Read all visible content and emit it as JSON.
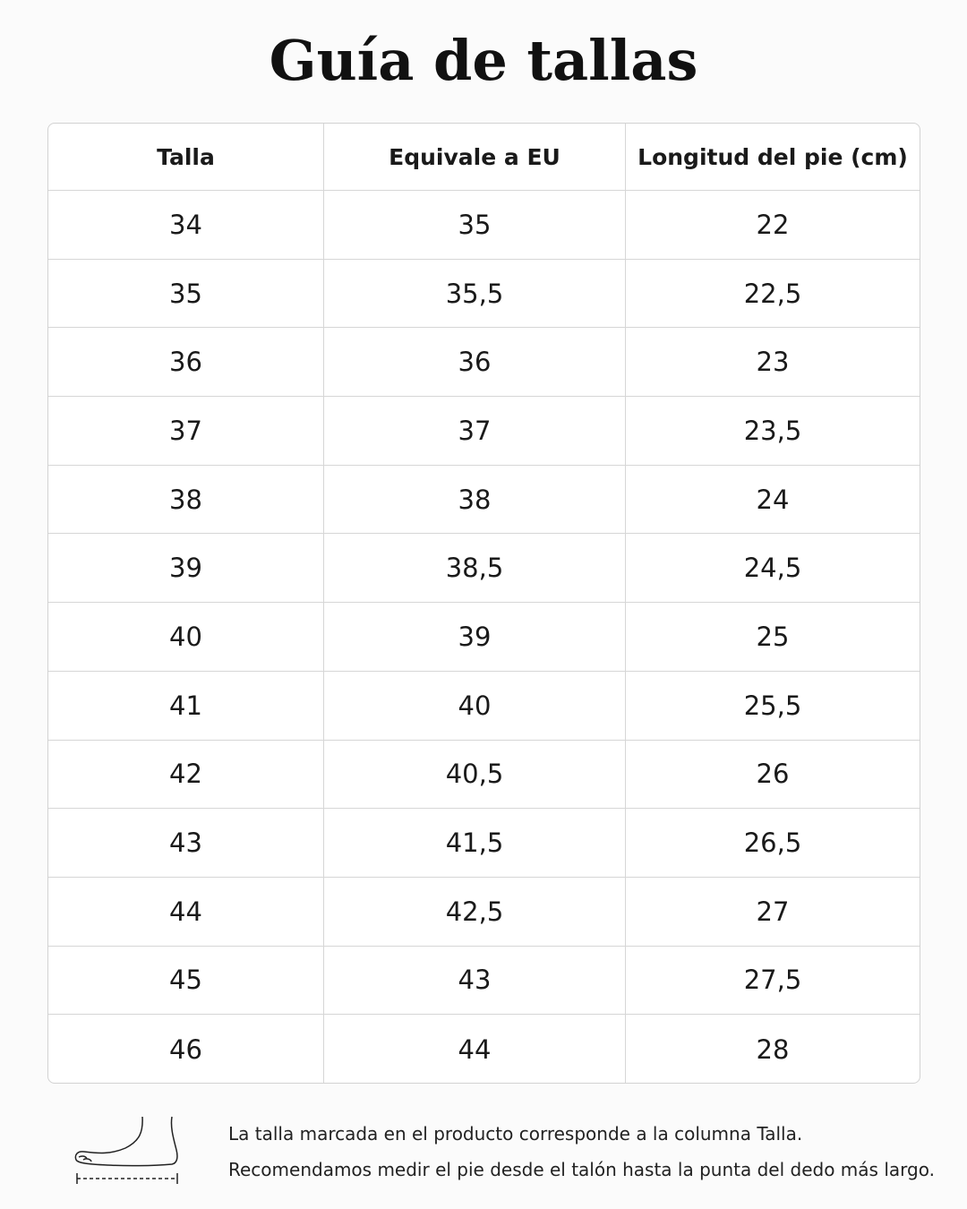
{
  "header": {
    "title": "Guía de tallas"
  },
  "table": {
    "columns": [
      "Talla",
      "Equivale a EU",
      "Longitud del pie (cm)"
    ],
    "rows": [
      [
        "34",
        "35",
        "22"
      ],
      [
        "35",
        "35,5",
        "22,5"
      ],
      [
        "36",
        "36",
        "23"
      ],
      [
        "37",
        "37",
        "23,5"
      ],
      [
        "38",
        "38",
        "24"
      ],
      [
        "39",
        "38,5",
        "24,5"
      ],
      [
        "40",
        "39",
        "25"
      ],
      [
        "41",
        "40",
        "25,5"
      ],
      [
        "42",
        "40,5",
        "26"
      ],
      [
        "43",
        "41,5",
        "26,5"
      ],
      [
        "44",
        "42,5",
        "27"
      ],
      [
        "45",
        "43",
        "27,5"
      ],
      [
        "46",
        "44",
        "28"
      ]
    ]
  },
  "footer": {
    "notes": [
      "La talla marcada en el producto corresponde a la columna Talla.",
      "Recomendamos medir el pie desde el talón hasta la punta del dedo más largo."
    ]
  }
}
